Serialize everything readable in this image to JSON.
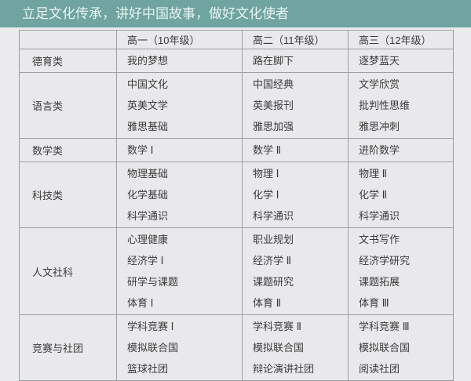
{
  "banner": {
    "title": "立足文化传承，讲好中国故事，做好文化使者",
    "bg_color": "#6fa4a0",
    "text_color": "#e9f4f2"
  },
  "table": {
    "column_headers": [
      "",
      "高一（10年级）",
      "高二（11年级）",
      "高三（12年级）"
    ],
    "rows": [
      {
        "category": "德育类",
        "courses": [
          [
            "我的梦想"
          ],
          [
            "路在脚下"
          ],
          [
            "逐梦蓝天"
          ]
        ]
      },
      {
        "category": "语言类",
        "courses": [
          [
            "中国文化",
            "英美文学",
            "雅思基础"
          ],
          [
            "中国经典",
            "英美报刊",
            "雅思加强"
          ],
          [
            "文学欣赏",
            "批判性思维",
            "雅思冲刺"
          ]
        ]
      },
      {
        "category": "数学类",
        "courses": [
          [
            "数学 Ⅰ"
          ],
          [
            "数学 Ⅱ"
          ],
          [
            "进阶数学"
          ]
        ]
      },
      {
        "category": "科技类",
        "courses": [
          [
            "物理基础",
            "化学基础",
            "科学通识"
          ],
          [
            "物理 Ⅰ",
            "化学 Ⅰ",
            "科学通识"
          ],
          [
            "物理 Ⅱ",
            "化学 Ⅱ",
            "科学通识"
          ]
        ]
      },
      {
        "category": "人文社科",
        "courses": [
          [
            "心理健康",
            "经济学 Ⅰ",
            "研学与课题",
            "体育 Ⅰ"
          ],
          [
            "职业规划",
            "经济学 Ⅱ",
            "课题研究",
            "体育 Ⅱ"
          ],
          [
            "文书写作",
            "经济学研究",
            "课题拓展",
            "体育 Ⅲ"
          ]
        ]
      },
      {
        "category": "竞赛与社团",
        "courses": [
          [
            "学科竞赛 Ⅰ",
            "模拟联合国",
            "篮球社团"
          ],
          [
            "学科竞赛 Ⅱ",
            "模拟联合国",
            "辩论演讲社团"
          ],
          [
            "学科竞赛 Ⅲ",
            "模拟联合国",
            "阅读社团"
          ]
        ]
      }
    ]
  },
  "chart_data": {
    "type": "table",
    "title": "立足文化传承，讲好中国故事，做好文化使者",
    "columns": [
      "",
      "高一（10年级）",
      "高二（11年级）",
      "高三（12年级）"
    ],
    "rows": [
      [
        "德育类",
        "我的梦想",
        "路在脚下",
        "逐梦蓝天"
      ],
      [
        "语言类",
        "中国文化 / 英美文学 / 雅思基础",
        "中国经典 / 英美报刊 / 雅思加强",
        "文学欣赏 / 批判性思维 / 雅思冲刺"
      ],
      [
        "数学类",
        "数学 Ⅰ",
        "数学 Ⅱ",
        "进阶数学"
      ],
      [
        "科技类",
        "物理基础 / 化学基础 / 科学通识",
        "物理 Ⅰ / 化学 Ⅰ / 科学通识",
        "物理 Ⅱ / 化学 Ⅱ / 科学通识"
      ],
      [
        "人文社科",
        "心理健康 / 经济学 Ⅰ / 研学与课题 / 体育 Ⅰ",
        "职业规划 / 经济学 Ⅱ / 课题研究 / 体育 Ⅱ",
        "文书写作 / 经济学研究 / 课题拓展 / 体育 Ⅲ"
      ],
      [
        "竞赛与社团",
        "学科竞赛 Ⅰ / 模拟联合国 / 篮球社团",
        "学科竞赛 Ⅱ / 模拟联合国 / 辩论演讲社团",
        "学科竞赛 Ⅲ / 模拟联合国 / 阅读社团"
      ]
    ]
  }
}
